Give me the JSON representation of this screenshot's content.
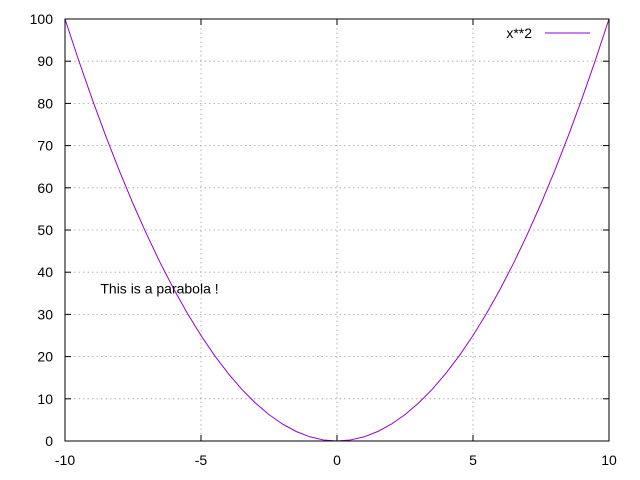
{
  "chart_data": {
    "type": "line",
    "title": "",
    "xlabel": "",
    "ylabel": "",
    "xlim": [
      -10,
      10
    ],
    "ylim": [
      0,
      100
    ],
    "grid": true,
    "legend_position": "top-right",
    "x_ticks": [
      {
        "value": -10,
        "label": "-10"
      },
      {
        "value": -5,
        "label": "-5"
      },
      {
        "value": 0,
        "label": "0"
      },
      {
        "value": 5,
        "label": "5"
      },
      {
        "value": 10,
        "label": "10"
      }
    ],
    "y_ticks": [
      {
        "value": 0,
        "label": "0"
      },
      {
        "value": 10,
        "label": "10"
      },
      {
        "value": 20,
        "label": "20"
      },
      {
        "value": 30,
        "label": "30"
      },
      {
        "value": 40,
        "label": "40"
      },
      {
        "value": 50,
        "label": "50"
      },
      {
        "value": 60,
        "label": "60"
      },
      {
        "value": 70,
        "label": "70"
      },
      {
        "value": 80,
        "label": "80"
      },
      {
        "value": 90,
        "label": "90"
      },
      {
        "value": 100,
        "label": "100"
      }
    ],
    "series": [
      {
        "name": "x**2",
        "color": "#9400d3",
        "x": [
          -10,
          -9.5,
          -9,
          -8.5,
          -8,
          -7.5,
          -7,
          -6.5,
          -6,
          -5.5,
          -5,
          -4.5,
          -4,
          -3.5,
          -3,
          -2.5,
          -2,
          -1.5,
          -1,
          -0.5,
          0,
          0.5,
          1,
          1.5,
          2,
          2.5,
          3,
          3.5,
          4,
          4.5,
          5,
          5.5,
          6,
          6.5,
          7,
          7.5,
          8,
          8.5,
          9,
          9.5,
          10
        ],
        "y": [
          100,
          90.25,
          81,
          72.25,
          64,
          56.25,
          49,
          42.25,
          36,
          30.25,
          25,
          20.25,
          16,
          12.25,
          9,
          6.25,
          4,
          2.25,
          1,
          0.25,
          0,
          0.25,
          1,
          2.25,
          4,
          6.25,
          9,
          12.25,
          16,
          20.25,
          25,
          30.25,
          36,
          42.25,
          49,
          56.25,
          64,
          72.25,
          81,
          90.25,
          100
        ]
      }
    ],
    "annotations": [
      {
        "text": "This is a parabola !",
        "x": -8.7,
        "y": 35
      }
    ]
  }
}
